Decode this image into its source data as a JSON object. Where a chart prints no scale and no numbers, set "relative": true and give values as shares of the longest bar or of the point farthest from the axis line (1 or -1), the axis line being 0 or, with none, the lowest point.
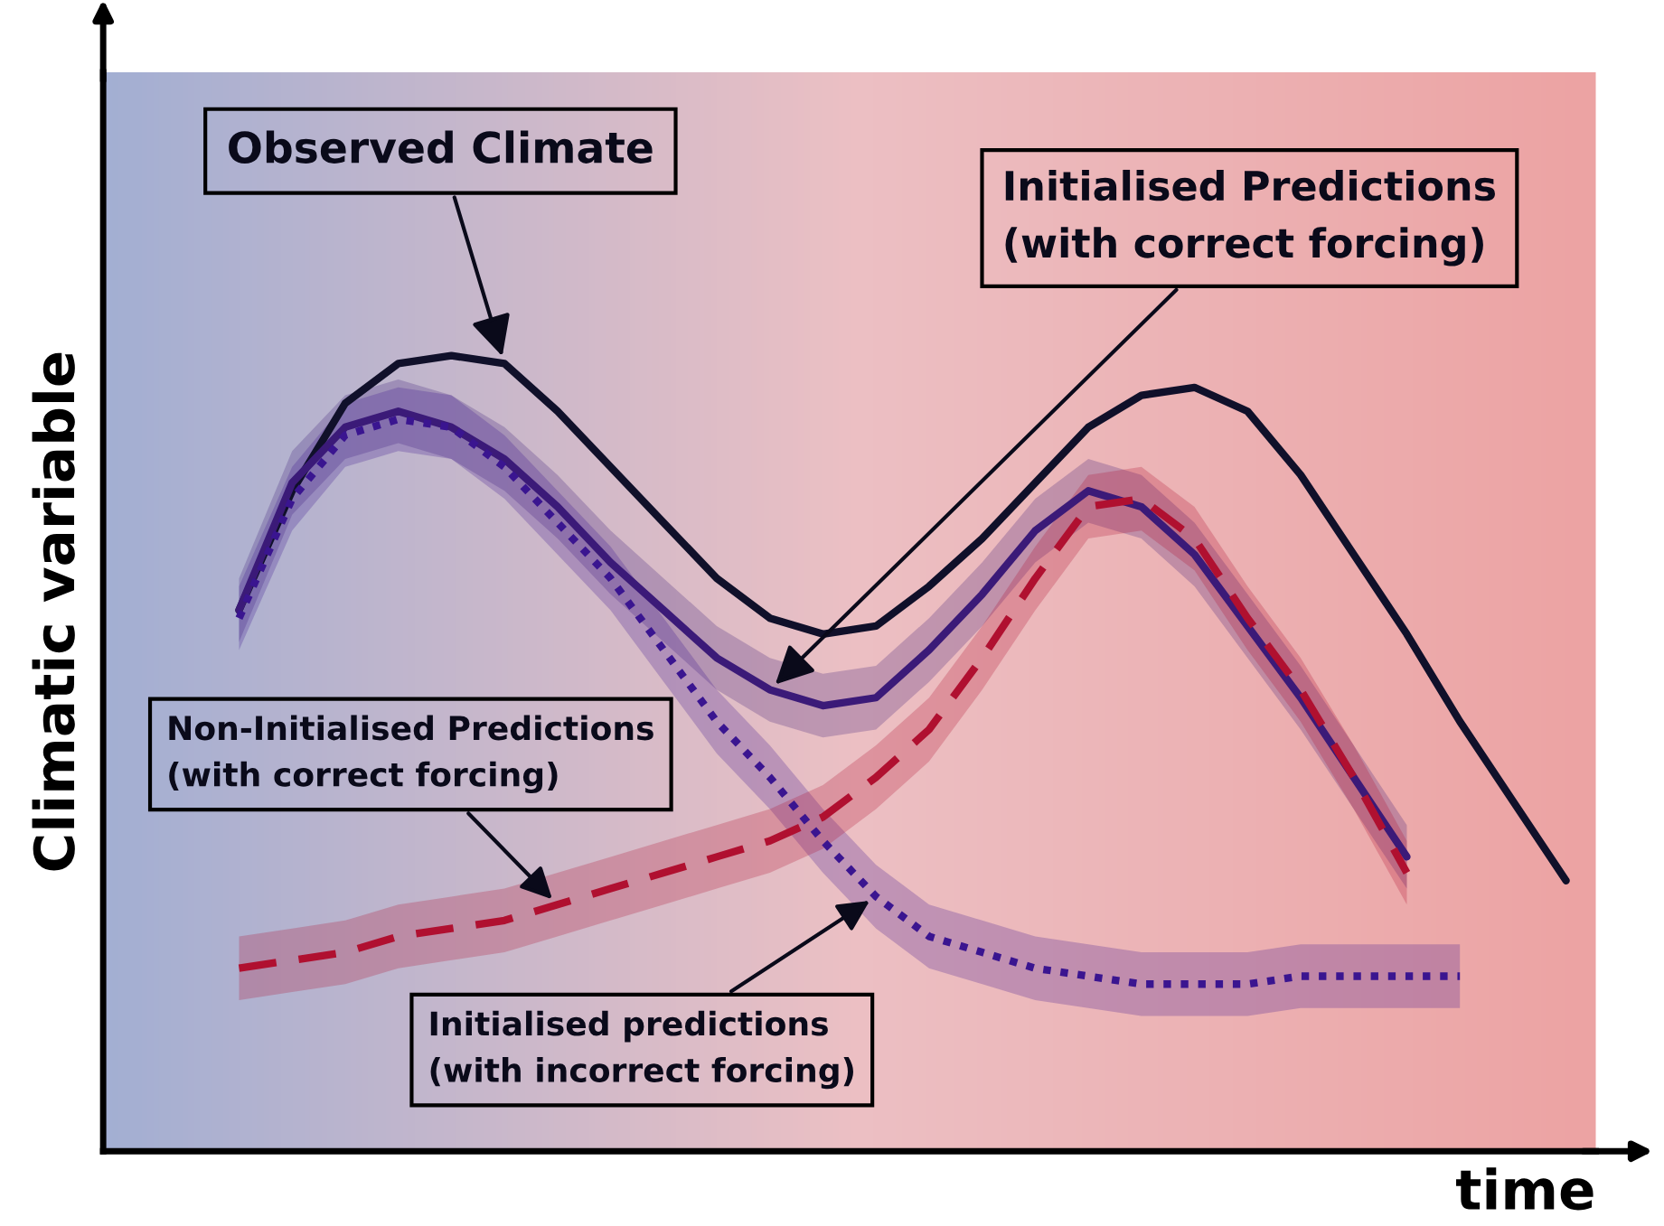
{
  "chart_data": {
    "type": "line",
    "relative": true,
    "xlabel": "time",
    "ylabel": "Climatic variable",
    "categories": [
      null,
      null,
      null,
      null,
      null,
      null,
      null,
      null,
      null,
      null,
      null,
      null,
      null,
      null,
      null,
      null,
      null,
      null,
      null,
      null,
      null,
      null,
      null,
      null,
      null,
      null
    ],
    "series": [
      {
        "color": "#10102a",
        "line_style": "solid",
        "values": [
          0.68,
          0.83,
          0.94,
          0.99,
          1.0,
          0.99,
          0.93,
          0.86,
          0.79,
          0.72,
          0.67,
          0.65,
          0.66,
          0.71,
          0.77,
          0.84,
          0.91,
          0.95,
          0.96,
          0.93,
          0.85,
          0.75,
          0.65,
          0.54,
          0.44,
          0.34
        ]
      },
      {
        "color": "#3b1a78",
        "line_style": "solid",
        "values": [
          0.68,
          0.84,
          0.91,
          0.93,
          0.91,
          0.87,
          0.81,
          0.74,
          0.68,
          0.62,
          0.58,
          0.56,
          0.57,
          0.63,
          0.7,
          0.78,
          0.83,
          0.81,
          0.75,
          0.66,
          0.57,
          0.47,
          0.37,
          null,
          null,
          null
        ],
        "lower": [
          0.64,
          0.8,
          0.87,
          0.89,
          0.87,
          0.83,
          0.77,
          0.7,
          0.64,
          0.58,
          0.54,
          0.52,
          0.53,
          0.59,
          0.66,
          0.74,
          0.79,
          0.77,
          0.71,
          0.62,
          0.53,
          0.43,
          0.33,
          null,
          null,
          null
        ],
        "upper": [
          0.72,
          0.88,
          0.95,
          0.97,
          0.95,
          0.91,
          0.85,
          0.78,
          0.72,
          0.66,
          0.62,
          0.6,
          0.61,
          0.67,
          0.74,
          0.82,
          0.87,
          0.85,
          0.79,
          0.7,
          0.61,
          0.51,
          0.41,
          null,
          null,
          null
        ]
      },
      {
        "color": "#3a1590",
        "line_style": "dotted",
        "values": [
          0.67,
          0.82,
          0.9,
          0.92,
          0.91,
          0.86,
          0.79,
          0.72,
          0.63,
          0.54,
          0.47,
          0.39,
          0.32,
          0.27,
          0.25,
          0.23,
          0.22,
          0.21,
          0.21,
          0.21,
          0.22,
          0.22,
          0.22,
          0.22,
          null,
          null
        ],
        "lower": [
          0.63,
          0.78,
          0.86,
          0.88,
          0.87,
          0.82,
          0.75,
          0.68,
          0.59,
          0.5,
          0.43,
          0.35,
          0.28,
          0.23,
          0.21,
          0.19,
          0.18,
          0.17,
          0.17,
          0.17,
          0.18,
          0.18,
          0.18,
          0.18,
          null,
          null
        ],
        "upper": [
          0.71,
          0.86,
          0.94,
          0.96,
          0.95,
          0.9,
          0.83,
          0.76,
          0.67,
          0.58,
          0.51,
          0.43,
          0.36,
          0.31,
          0.29,
          0.27,
          0.26,
          0.25,
          0.25,
          0.25,
          0.26,
          0.26,
          0.26,
          0.26,
          null,
          null
        ]
      },
      {
        "color": "#b01030",
        "line_style": "dashed",
        "values": [
          0.23,
          0.24,
          0.25,
          0.27,
          0.28,
          0.29,
          0.31,
          0.33,
          0.35,
          0.37,
          0.39,
          0.42,
          0.47,
          0.53,
          0.62,
          0.72,
          0.81,
          0.82,
          0.77,
          0.67,
          0.58,
          0.47,
          0.35,
          null,
          null,
          null
        ],
        "lower": [
          0.19,
          0.2,
          0.21,
          0.23,
          0.24,
          0.25,
          0.27,
          0.29,
          0.31,
          0.33,
          0.35,
          0.38,
          0.43,
          0.49,
          0.58,
          0.68,
          0.77,
          0.78,
          0.73,
          0.63,
          0.54,
          0.43,
          0.31,
          null,
          null,
          null
        ],
        "upper": [
          0.27,
          0.28,
          0.29,
          0.31,
          0.32,
          0.33,
          0.35,
          0.37,
          0.39,
          0.41,
          0.43,
          0.46,
          0.51,
          0.57,
          0.66,
          0.76,
          0.85,
          0.86,
          0.81,
          0.71,
          0.62,
          0.51,
          0.39,
          null,
          null,
          null
        ]
      }
    ],
    "annotations": [
      "Observed Climate",
      "Initialised Predictions\n(with correct forcing)",
      "Non-Initialised Predictions\n(with correct forcing)",
      "Initialised predictions\n(with incorrect forcing)"
    ]
  }
}
